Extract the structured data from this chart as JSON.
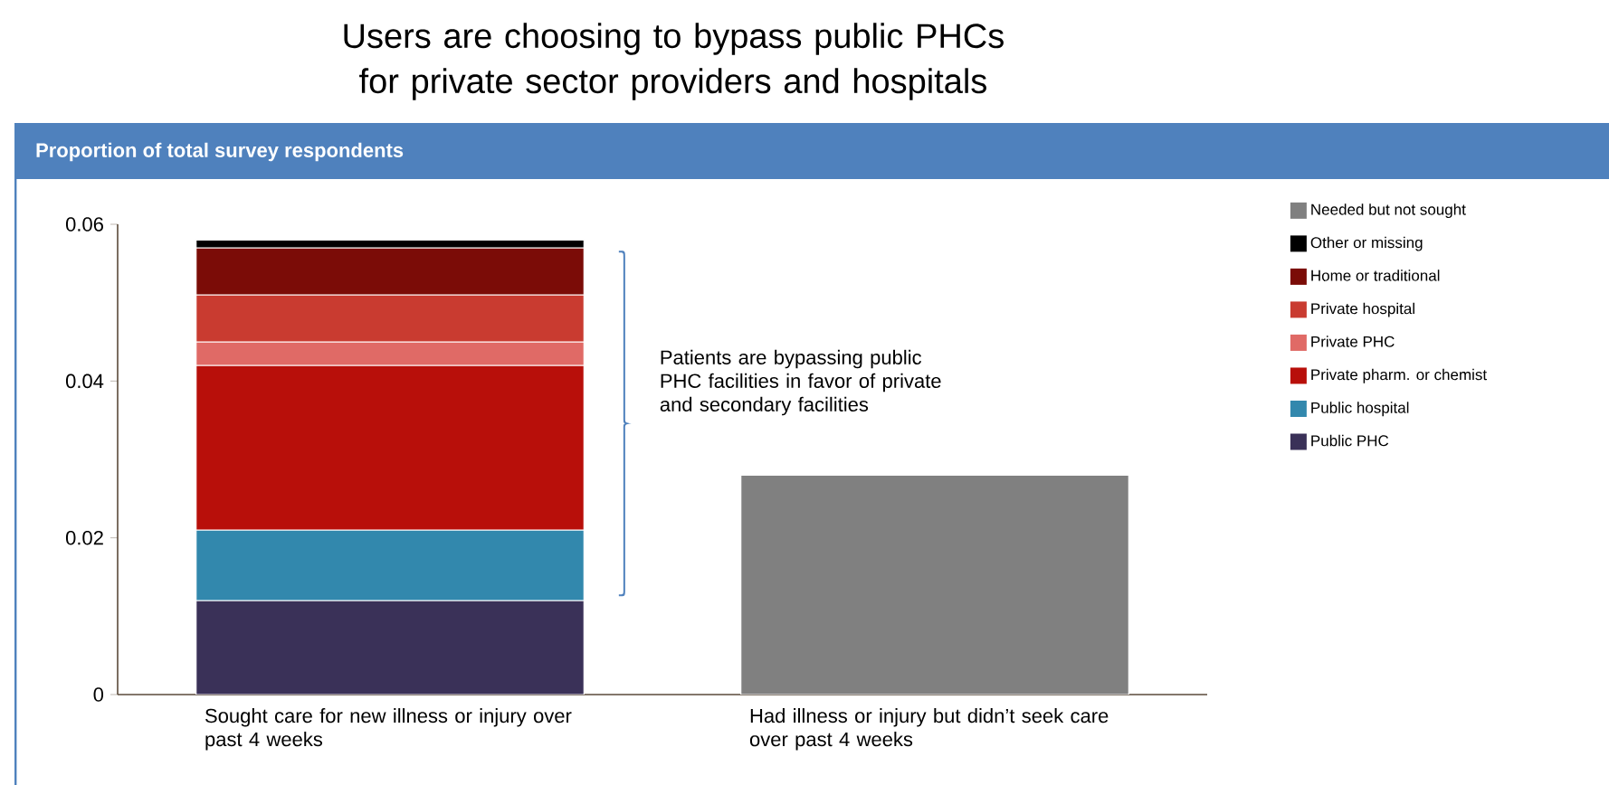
{
  "chart_data": {
    "type": "bar",
    "title": "Users are choosing to bypass public PHCs for private sector providers and hospitals",
    "subtitle": "Proportion of total survey respondents",
    "categories": [
      "Sought care for new illness or injury over past 4 weeks",
      "Had illness or injury but didn’t seek care over past 4 weeks"
    ],
    "series": [
      {
        "name": "Public PHC",
        "color": "#3a3158",
        "values": [
          0.012,
          null
        ]
      },
      {
        "name": "Public hospital",
        "color": "#3288ad",
        "values": [
          0.009,
          null
        ]
      },
      {
        "name": "Private pharm. or chemist",
        "color": "#b80f0a",
        "values": [
          0.021,
          null
        ]
      },
      {
        "name": "Private PHC",
        "color": "#e06a66",
        "values": [
          0.003,
          null
        ]
      },
      {
        "name": "Private hospital",
        "color": "#c93b30",
        "values": [
          0.006,
          null
        ]
      },
      {
        "name": "Home or traditional",
        "color": "#7b0c07",
        "values": [
          0.006,
          null
        ]
      },
      {
        "name": "Other or missing",
        "color": "#000000",
        "values": [
          0.001,
          null
        ]
      },
      {
        "name": "Needed but not sought",
        "color": "#808080",
        "values": [
          null,
          0.028
        ]
      }
    ],
    "stacked": true,
    "ylim": [
      0,
      0.06
    ],
    "yticks": [
      0,
      0.02,
      0.04,
      0.06
    ],
    "legend": "right",
    "annotations": [
      "Patients are bypassing public PHC facilities in favor of private and secondary facilities"
    ]
  }
}
